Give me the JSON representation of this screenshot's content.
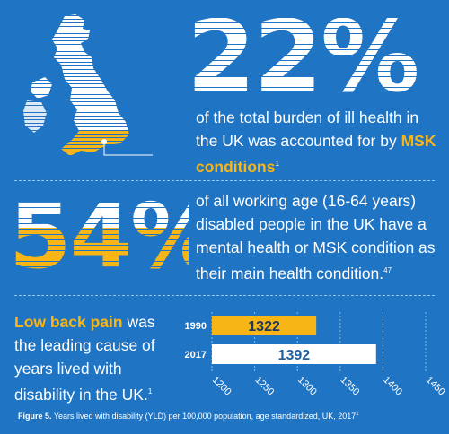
{
  "stat1": {
    "value": "22%",
    "text_before": "of the total burden of ill health in the UK was accounted for by",
    "highlight": "MSK conditions",
    "ref": "1"
  },
  "stat2": {
    "value": "54%",
    "text": "of all working age (16-64 years) disabled people in the UK have a mental health or MSK condition as their main health condition.",
    "ref": "47"
  },
  "stat3": {
    "highlight": "Low back pain",
    "text": "was the leading cause of years lived with disability in the UK.",
    "ref": "1"
  },
  "chart_data": {
    "type": "bar",
    "orientation": "horizontal",
    "categories": [
      "1990",
      "2017"
    ],
    "values": [
      1322,
      1392
    ],
    "xlim": [
      1200,
      1450
    ],
    "xticks": [
      "1200",
      "1250",
      "1300",
      "1350",
      "1400",
      "1450"
    ],
    "grid": true,
    "colors": [
      "#f8b616",
      "#ffffff"
    ]
  },
  "caption": {
    "label": "Figure 5.",
    "text": "Years lived with disability (YLD) per 100,000 population, age standardized, UK, 2017",
    "ref": "1"
  },
  "colors": {
    "background": "#1f74c4",
    "accent": "#f8b616",
    "text": "#ffffff"
  }
}
